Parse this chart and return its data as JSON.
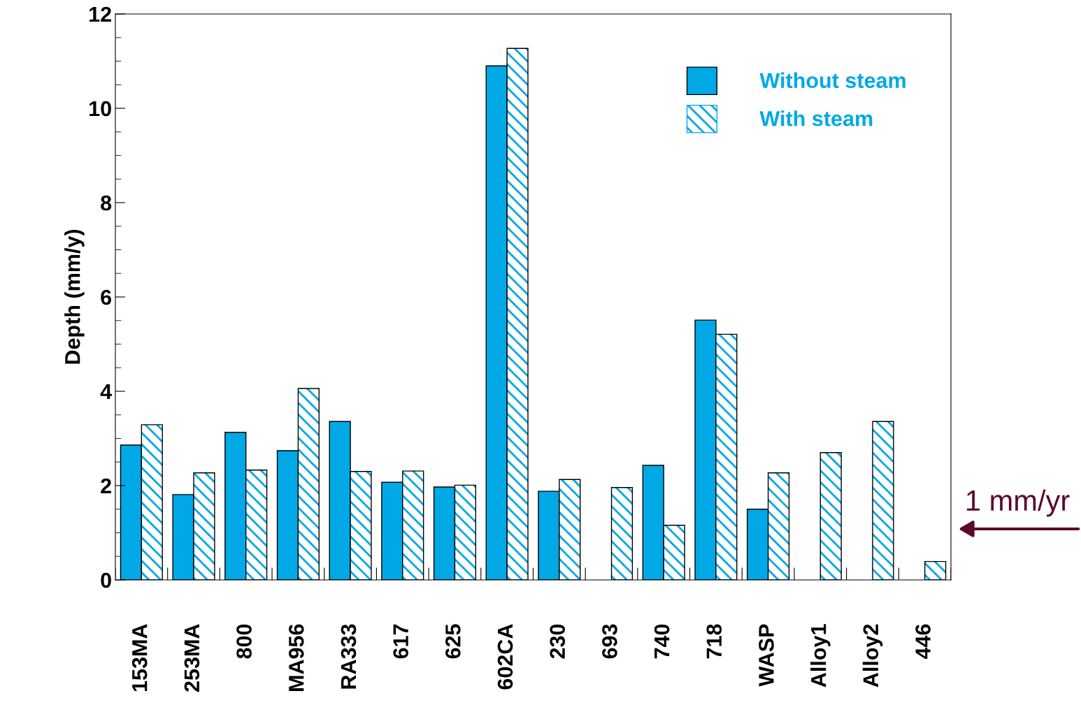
{
  "chart_data": {
    "type": "bar",
    "ylabel": "Depth (mm/y)",
    "categories": [
      "153MA",
      "253MA",
      "800",
      "MA956",
      "RA333",
      "617",
      "625",
      "602CA",
      "230",
      "693",
      "740",
      "718",
      "WASP",
      "Alloy1",
      "Alloy2",
      "446"
    ],
    "series": [
      {
        "name": "Without steam",
        "color": "#00a8e6",
        "values": [
          2.86,
          1.81,
          3.13,
          2.74,
          3.36,
          2.07,
          1.97,
          10.9,
          1.88,
          null,
          2.43,
          5.51,
          1.5,
          null,
          null,
          null
        ]
      },
      {
        "name": "With steam",
        "color": "#00a8e6",
        "values": [
          3.29,
          2.27,
          2.33,
          4.06,
          2.3,
          2.31,
          2.01,
          11.27,
          2.13,
          1.96,
          1.16,
          5.21,
          2.27,
          2.7,
          3.36,
          0.39
        ]
      }
    ],
    "ylim": [
      0,
      12
    ],
    "yticks": [
      0,
      2,
      4,
      6,
      8,
      10,
      12
    ],
    "grid": false,
    "legend": "top right",
    "annotations": [
      "1 mm/yr"
    ]
  }
}
